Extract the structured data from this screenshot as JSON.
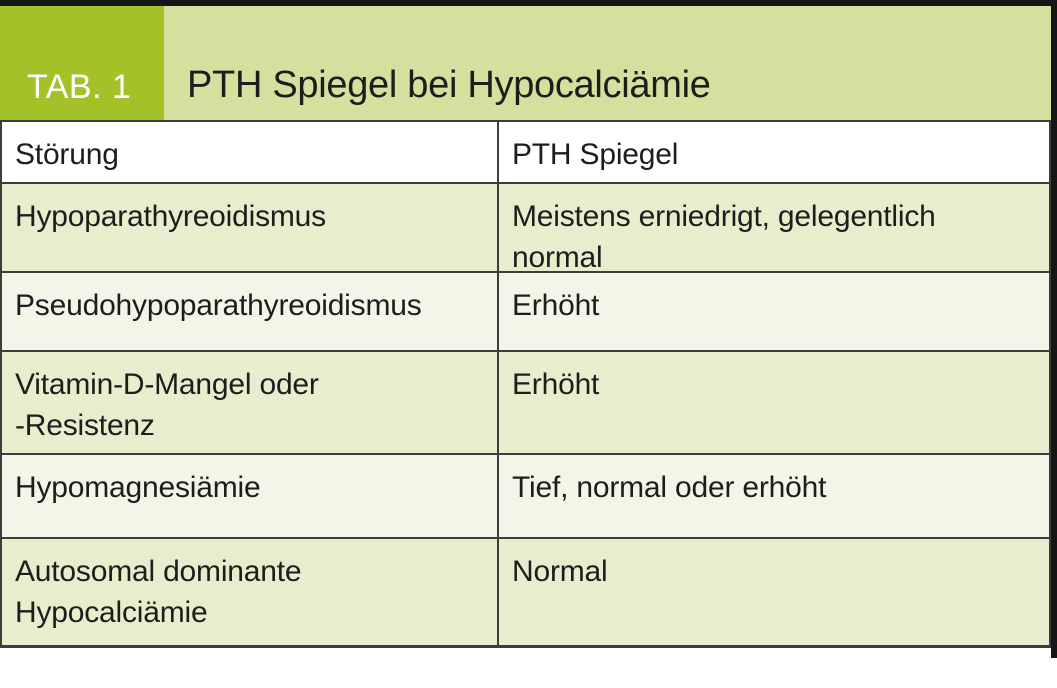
{
  "header": {
    "tab_label": "TAB. 1",
    "title": "PTH Spiegel bei Hypocalciämie"
  },
  "table": {
    "columns": {
      "stoerung": "Störung",
      "pth": "PTH Spiegel"
    },
    "rows": [
      {
        "stoerung": "Hypoparathyreoidismus",
        "pth": "Meistens erniedrigt, gelegentlich\nnormal"
      },
      {
        "stoerung": "Pseudohypoparathyreoidismus",
        "pth": "Erhöht"
      },
      {
        "stoerung": "Vitamin-D-Mangel oder\n-Resistenz",
        "pth": "Erhöht"
      },
      {
        "stoerung": "Hypomagnesiämie",
        "pth": "Tief, normal oder erhöht"
      },
      {
        "stoerung": "Autosomal dominante\nHypocalciämie",
        "pth": "Normal"
      }
    ]
  },
  "colors": {
    "tab_box_green": "#a3c228",
    "title_band_green": "#d5e09e",
    "row_green": "#e7eecd",
    "row_cream": "#f3f6e7",
    "border": "#3d3d3d",
    "rule_black": "#161616",
    "text": "#1d1d1d",
    "tab_label_white": "#ffffff"
  }
}
